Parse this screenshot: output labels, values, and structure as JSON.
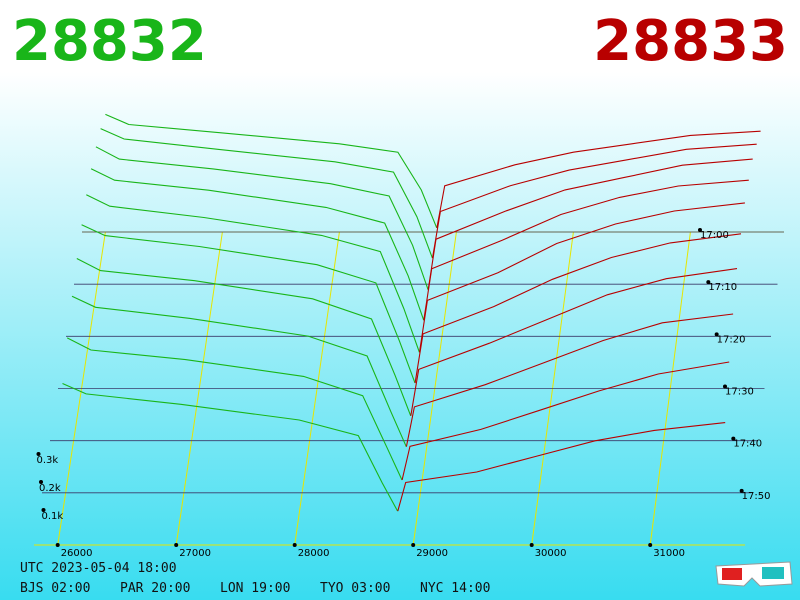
{
  "chart_data": {
    "type": "depth3d",
    "bid_label": "28832",
    "ask_label": "28833",
    "bid_color": "#19b519",
    "ask_color": "#b80000",
    "grid_color": "#e6e600",
    "xlim": [
      25800,
      31800
    ],
    "xticks": [
      26000,
      27000,
      28000,
      29000,
      30000,
      31000
    ],
    "ylim": [
      0,
      1.5
    ],
    "yticks": [
      {
        "value": 0.1,
        "label": "0.1k"
      },
      {
        "value": 0.2,
        "label": "0.2k"
      },
      {
        "value": 0.3,
        "label": "0.3k"
      }
    ],
    "tlim": [
      0,
      60
    ],
    "tticks": [
      {
        "value": 0,
        "label": "17:00"
      },
      {
        "value": 10,
        "label": "17:10"
      },
      {
        "value": 20,
        "label": "17:20"
      },
      {
        "value": 30,
        "label": "17:30"
      },
      {
        "value": 40,
        "label": "17:40"
      },
      {
        "value": 50,
        "label": "17:50"
      }
    ],
    "bid_prices": [
      26000,
      26200,
      27000,
      28000,
      28500,
      28700,
      28832
    ],
    "ask_prices": [
      28833,
      28900,
      29500,
      30000,
      30500,
      31000,
      31600
    ],
    "snapshots": [
      {
        "t": 0,
        "bids": [
          1.4,
          1.28,
          1.18,
          1.05,
          0.95,
          0.5,
          0.05
        ],
        "asks": [
          0.05,
          0.55,
          0.8,
          0.95,
          1.05,
          1.15,
          1.2
        ]
      },
      {
        "t": 6,
        "bids": [
          1.3,
          1.2,
          1.1,
          0.98,
          0.88,
          0.45,
          0.05
        ],
        "asks": [
          0.05,
          0.5,
          0.75,
          0.9,
          1.0,
          1.1,
          1.15
        ]
      },
      {
        "t": 12,
        "bids": [
          1.2,
          1.1,
          1.02,
          0.9,
          0.8,
          0.4,
          0.04
        ],
        "asks": [
          0.04,
          0.45,
          0.68,
          0.85,
          0.95,
          1.05,
          1.1
        ]
      },
      {
        "t": 18,
        "bids": [
          1.1,
          1.02,
          0.95,
          0.83,
          0.72,
          0.35,
          0.04
        ],
        "asks": [
          0.04,
          0.4,
          0.6,
          0.78,
          0.9,
          0.98,
          1.02
        ]
      },
      {
        "t": 24,
        "bids": [
          1.0,
          0.93,
          0.86,
          0.75,
          0.65,
          0.3,
          0.03
        ],
        "asks": [
          0.03,
          0.35,
          0.52,
          0.7,
          0.82,
          0.9,
          0.95
        ]
      },
      {
        "t": 30,
        "bids": [
          0.9,
          0.84,
          0.78,
          0.68,
          0.58,
          0.26,
          0.03
        ],
        "asks": [
          0.03,
          0.3,
          0.45,
          0.6,
          0.72,
          0.8,
          0.85
        ]
      },
      {
        "t": 36,
        "bids": [
          0.8,
          0.74,
          0.69,
          0.6,
          0.5,
          0.22,
          0.02
        ],
        "asks": [
          0.02,
          0.25,
          0.38,
          0.5,
          0.62,
          0.7,
          0.75
        ]
      },
      {
        "t": 42,
        "bids": [
          0.7,
          0.65,
          0.6,
          0.52,
          0.43,
          0.18,
          0.02
        ],
        "asks": [
          0.02,
          0.2,
          0.3,
          0.4,
          0.5,
          0.58,
          0.62
        ]
      },
      {
        "t": 48,
        "bids": [
          0.6,
          0.55,
          0.51,
          0.44,
          0.36,
          0.15,
          0.01
        ],
        "asks": [
          0.01,
          0.15,
          0.22,
          0.3,
          0.38,
          0.45,
          0.5
        ]
      },
      {
        "t": 54,
        "bids": [
          0.5,
          0.46,
          0.42,
          0.36,
          0.3,
          0.12,
          0.01
        ],
        "asks": [
          0.01,
          0.12,
          0.16,
          0.22,
          0.28,
          0.32,
          0.35
        ]
      }
    ],
    "footer": {
      "utc": "UTC 2023-05-04 18:00",
      "zones": [
        "BJS 02:00",
        "PAR 20:00",
        "LON 19:00",
        "TYO 03:00",
        "NYC 14:00"
      ]
    }
  }
}
